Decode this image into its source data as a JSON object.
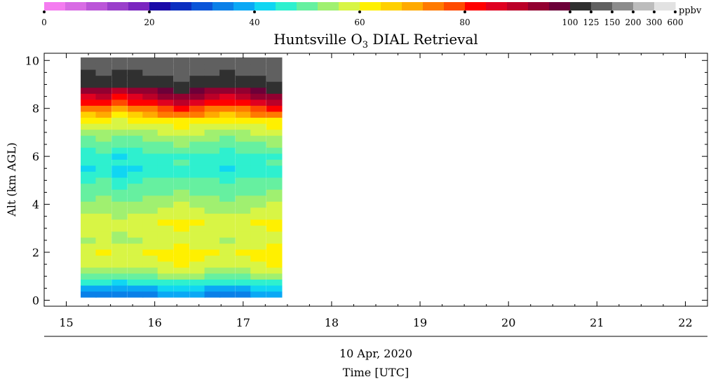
{
  "chart_data": {
    "type": "heatmap",
    "title": "Huntsville O",
    "title_sub": "3",
    "title_rest": " DIAL Retrieval",
    "ylabel": "Alt (km AGL)",
    "xlabel_date": "10 Apr, 2020",
    "xlabel": "Time [UTC]",
    "xlim": [
      14.75,
      22.25
    ],
    "ylim": [
      -0.25,
      10.3
    ],
    "xticks": [
      15,
      16,
      17,
      18,
      19,
      20,
      21,
      22
    ],
    "yticks": [
      0,
      2,
      4,
      6,
      8,
      10
    ],
    "colorbar": {
      "unit": "ppbv",
      "tick_labels": [
        "0",
        "20",
        "40",
        "60",
        "80",
        "100",
        "125",
        "150",
        "200",
        "300",
        "600"
      ],
      "colors": [
        "#f47cf0",
        "#d86ce4",
        "#bb56d8",
        "#9a3fcb",
        "#7a26c0",
        "#1a0aa8",
        "#0b2fc0",
        "#0a55d8",
        "#0a80e8",
        "#0aa8f5",
        "#10d6f2",
        "#2ef0cf",
        "#66f0a0",
        "#a0f070",
        "#d8f545",
        "#fff000",
        "#ffd000",
        "#ffaa00",
        "#ff7a00",
        "#ff4a00",
        "#ff0000",
        "#e00020",
        "#bb0028",
        "#920030",
        "#6c0038",
        "#303030",
        "#606060",
        "#8c8c8c",
        "#bcbcbc",
        "#e2e2e2"
      ]
    },
    "time": [
      15.25,
      15.42,
      15.6,
      15.78,
      15.95,
      16.12,
      16.3,
      16.48,
      16.65,
      16.82,
      17.0,
      17.17,
      17.35
    ],
    "altitude_km": [
      0.25,
      0.5,
      0.75,
      1.0,
      1.25,
      1.5,
      1.75,
      2.0,
      2.25,
      2.5,
      2.75,
      3.0,
      3.25,
      3.5,
      3.75,
      4.0,
      4.25,
      4.5,
      4.75,
      5.0,
      5.25,
      5.5,
      5.75,
      6.0,
      6.25,
      6.5,
      6.75,
      7.0,
      7.25,
      7.5,
      7.75,
      8.0,
      8.25,
      8.5,
      8.75,
      9.0,
      9.25,
      9.5,
      9.75,
      10.0
    ],
    "ozone_ppbv_profile_typical": [
      34,
      38,
      44,
      50,
      54,
      57,
      58,
      59,
      57,
      55,
      56,
      57,
      58,
      56,
      54,
      53,
      51,
      49,
      48,
      47,
      44,
      43,
      45,
      44,
      47,
      49,
      51,
      54,
      57,
      60,
      66,
      72,
      80,
      86,
      92,
      104,
      118,
      122,
      130,
      135
    ],
    "ozone_ppbv_per_profile_offset": [
      0,
      1,
      -1,
      0,
      1,
      2,
      3,
      2,
      1,
      0,
      1,
      2,
      3
    ]
  }
}
